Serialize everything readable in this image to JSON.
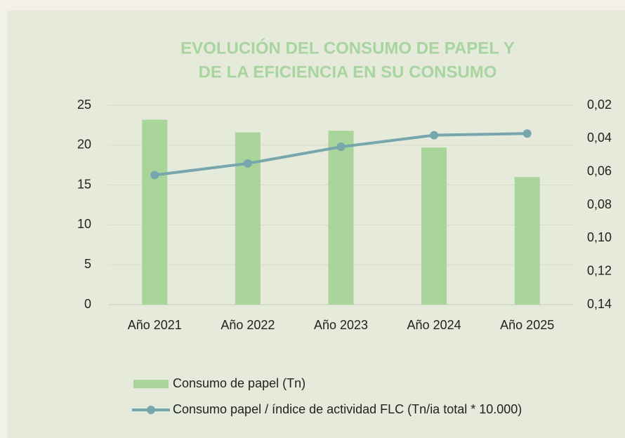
{
  "chart_data": {
    "type": "bar_line",
    "title_lines": [
      "EVOLUCIÓN DEL CONSUMO DE PAPEL Y",
      "DE LA EFICIENCIA EN SU CONSUMO"
    ],
    "categories": [
      "Año 2021",
      "Año 2022",
      "Año 2023",
      "Año 2024",
      "Año 2025"
    ],
    "series": [
      {
        "name": "Consumo de papel (Tn)",
        "type": "bar",
        "color": "#a9d49a",
        "values": [
          23.2,
          21.6,
          21.8,
          19.7,
          16.0
        ]
      },
      {
        "name": "Consumo papel / índice de actividad FLC (Tn/ia total * 10.000)",
        "type": "line",
        "axis": "y2",
        "color": "#78a6ad",
        "values": [
          0.062,
          0.055,
          0.045,
          0.038,
          0.037
        ]
      }
    ],
    "ylim": [
      0,
      25
    ],
    "yticks": [
      0,
      5,
      10,
      15,
      20,
      25
    ],
    "y2lim": [
      0.02,
      0.14
    ],
    "y2_inverted": true,
    "y2ticks": [
      {
        "value": 0.02,
        "label": "0,02"
      },
      {
        "value": 0.04,
        "label": "0,04"
      },
      {
        "value": 0.06,
        "label": "0,06"
      },
      {
        "value": 0.08,
        "label": "0,08"
      },
      {
        "value": 0.1,
        "label": "0,10"
      },
      {
        "value": 0.12,
        "label": "0,12"
      },
      {
        "value": 0.14,
        "label": "0,14"
      }
    ],
    "grid": true,
    "legend": "bottom"
  }
}
